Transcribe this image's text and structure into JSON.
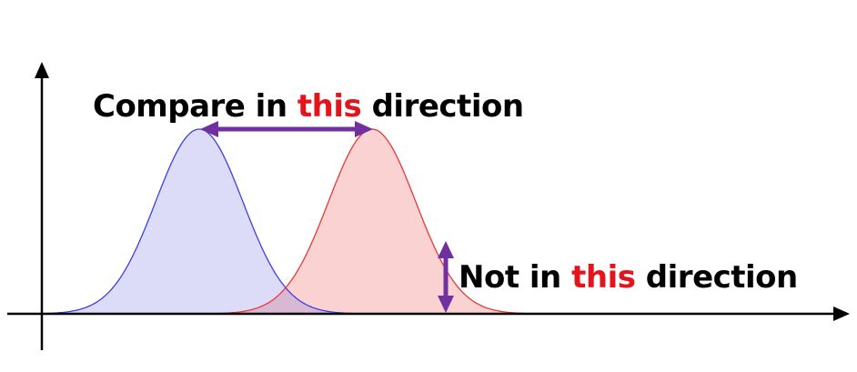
{
  "labels": {
    "compare": {
      "prefix": "Compare in ",
      "highlight": "this",
      "suffix": " direction"
    },
    "not_compare": {
      "prefix": "Not in ",
      "highlight": "this",
      "suffix": " direction"
    }
  },
  "colors": {
    "axis": "#000000",
    "text": "#000000",
    "highlight": "#e3141b",
    "arrow": "#7030a0",
    "blue_stroke": "#3f3fe0",
    "blue_fill": "#dcdcf8",
    "red_stroke": "#e83838",
    "red_fill": "#fbd2d2"
  },
  "curves": [
    {
      "name": "left-distribution",
      "peak": 0.5,
      "color": "blue"
    },
    {
      "name": "right-distribution",
      "peak": 1.5,
      "color": "red"
    }
  ]
}
